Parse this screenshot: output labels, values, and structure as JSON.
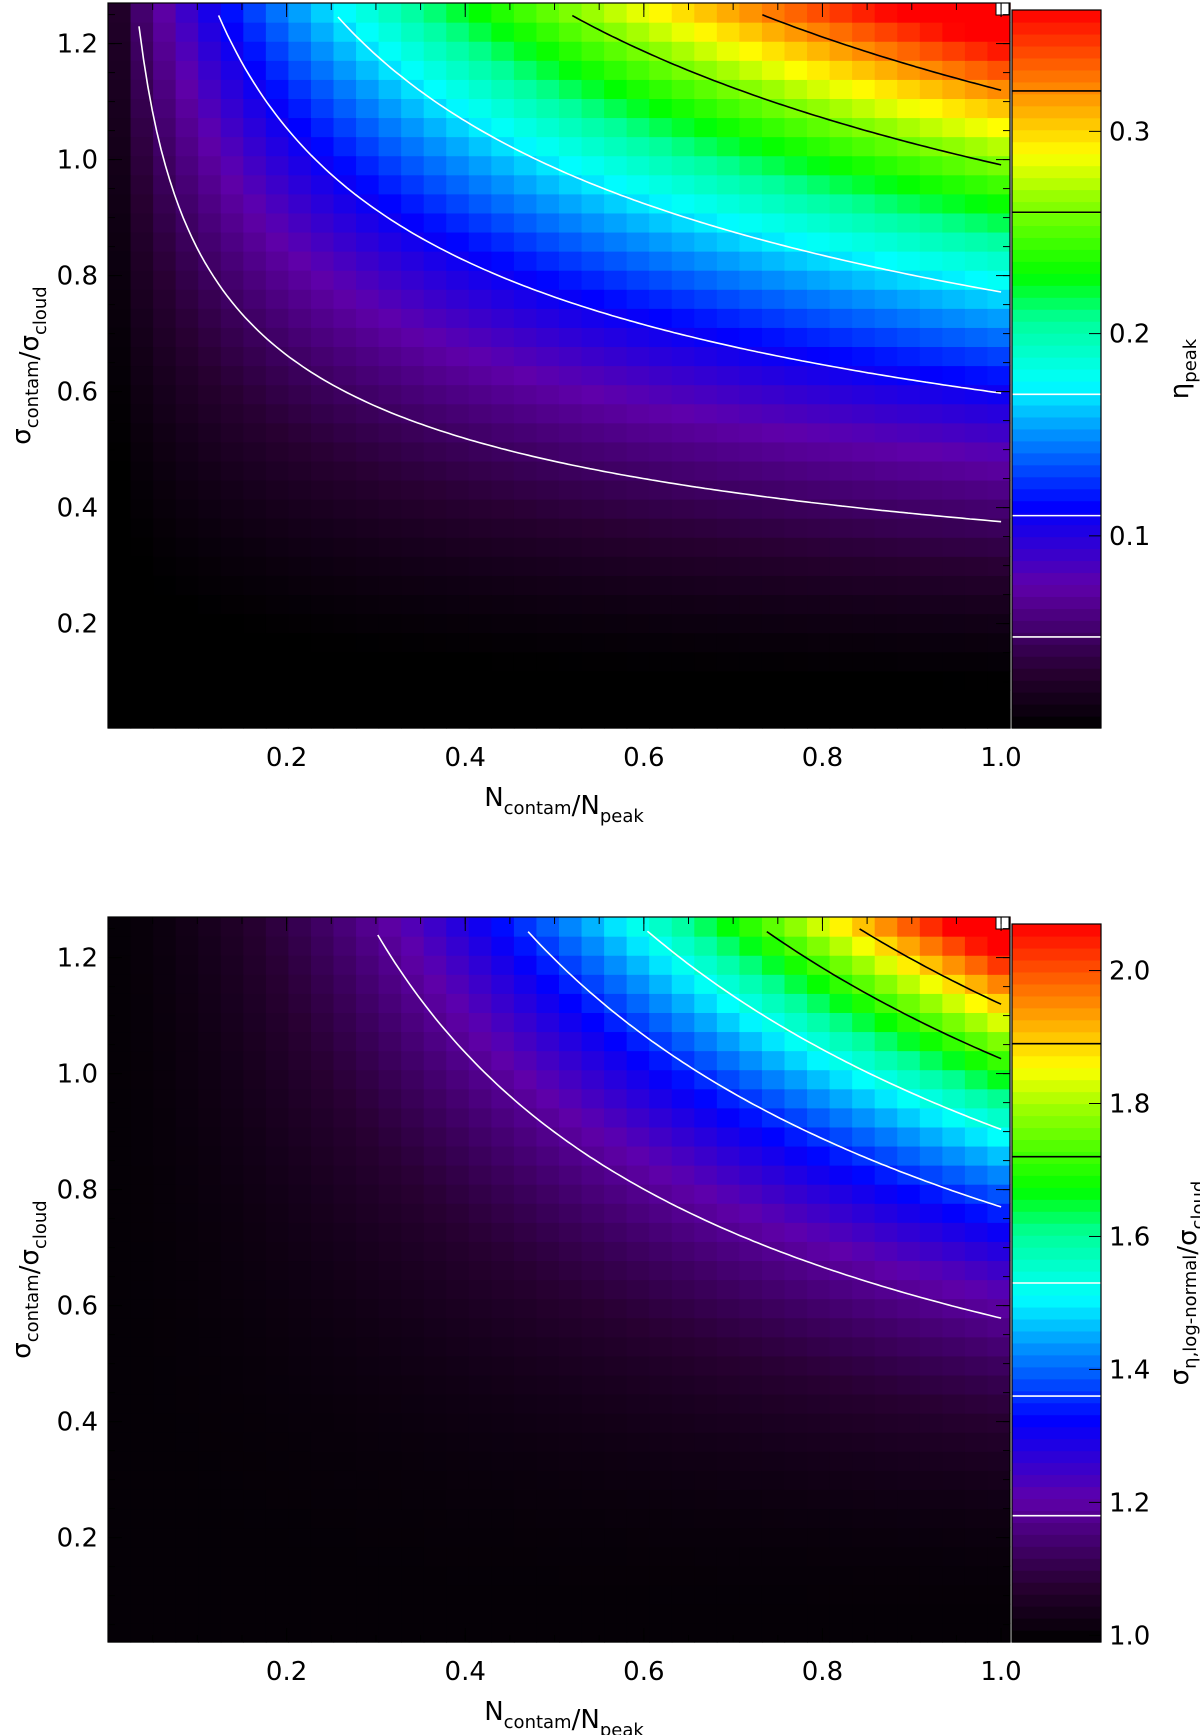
{
  "chart_data": [
    {
      "type": "heatmap",
      "title": "",
      "xlabel": {
        "main": "N",
        "sub": "contam",
        "sep": "/",
        "main2": "N",
        "sub2": "peak"
      },
      "ylabel": {
        "main": "σ",
        "sub": "contam",
        "sep": "/",
        "main2": "σ",
        "sub2": "cloud"
      },
      "xlim": [
        0.0,
        1.01
      ],
      "ylim": [
        0.02,
        1.27
      ],
      "x_ticks": [
        "0.2",
        "0.4",
        "0.6",
        "0.8",
        "1.0"
      ],
      "y_ticks": [
        "0.2",
        "0.4",
        "0.6",
        "0.8",
        "1.0",
        "1.2"
      ],
      "colorbar": {
        "label": {
          "main": "η",
          "sub": "peak"
        },
        "range": [
          0.005,
          0.36
        ],
        "ticks": [
          "0.1",
          "0.2",
          "0.3"
        ],
        "colormap": "rainbow (black-purple-blue-cyan-green-yellow-red)"
      },
      "contour_levels": [
        0.05,
        0.11,
        0.17,
        0.26,
        0.32
      ],
      "contour_colors": [
        "#ffffff",
        "#ffffff",
        "#ffffff",
        "#000000",
        "#000000"
      ]
    },
    {
      "type": "heatmap",
      "title": "",
      "xlabel": {
        "main": "N",
        "sub": "contam",
        "sep": "/",
        "main2": "N",
        "sub2": "peak"
      },
      "ylabel": {
        "main": "σ",
        "sub": "contam",
        "sep": "/",
        "main2": "σ",
        "sub2": "cloud"
      },
      "xlim": [
        0.0,
        1.01
      ],
      "ylim": [
        0.02,
        1.27
      ],
      "x_ticks": [
        "0.2",
        "0.4",
        "0.6",
        "0.8",
        "1.0"
      ],
      "y_ticks": [
        "0.2",
        "0.4",
        "0.6",
        "0.8",
        "1.0",
        "1.2"
      ],
      "colorbar": {
        "label": {
          "main": "σ",
          "sub": "η,log-normal",
          "sep": "/",
          "main2": "σ",
          "sub2": "cloud"
        },
        "range": [
          0.99,
          2.07
        ],
        "ticks": [
          "1.0",
          "1.2",
          "1.4",
          "1.6",
          "1.8",
          "2.0"
        ],
        "colormap": "rainbow (black-purple-blue-cyan-green-yellow-red)"
      },
      "contour_levels": [
        1.18,
        1.36,
        1.53,
        1.72,
        1.89
      ],
      "contour_colors": [
        "#ffffff",
        "#ffffff",
        "#ffffff",
        "#000000",
        "#000000"
      ]
    }
  ]
}
